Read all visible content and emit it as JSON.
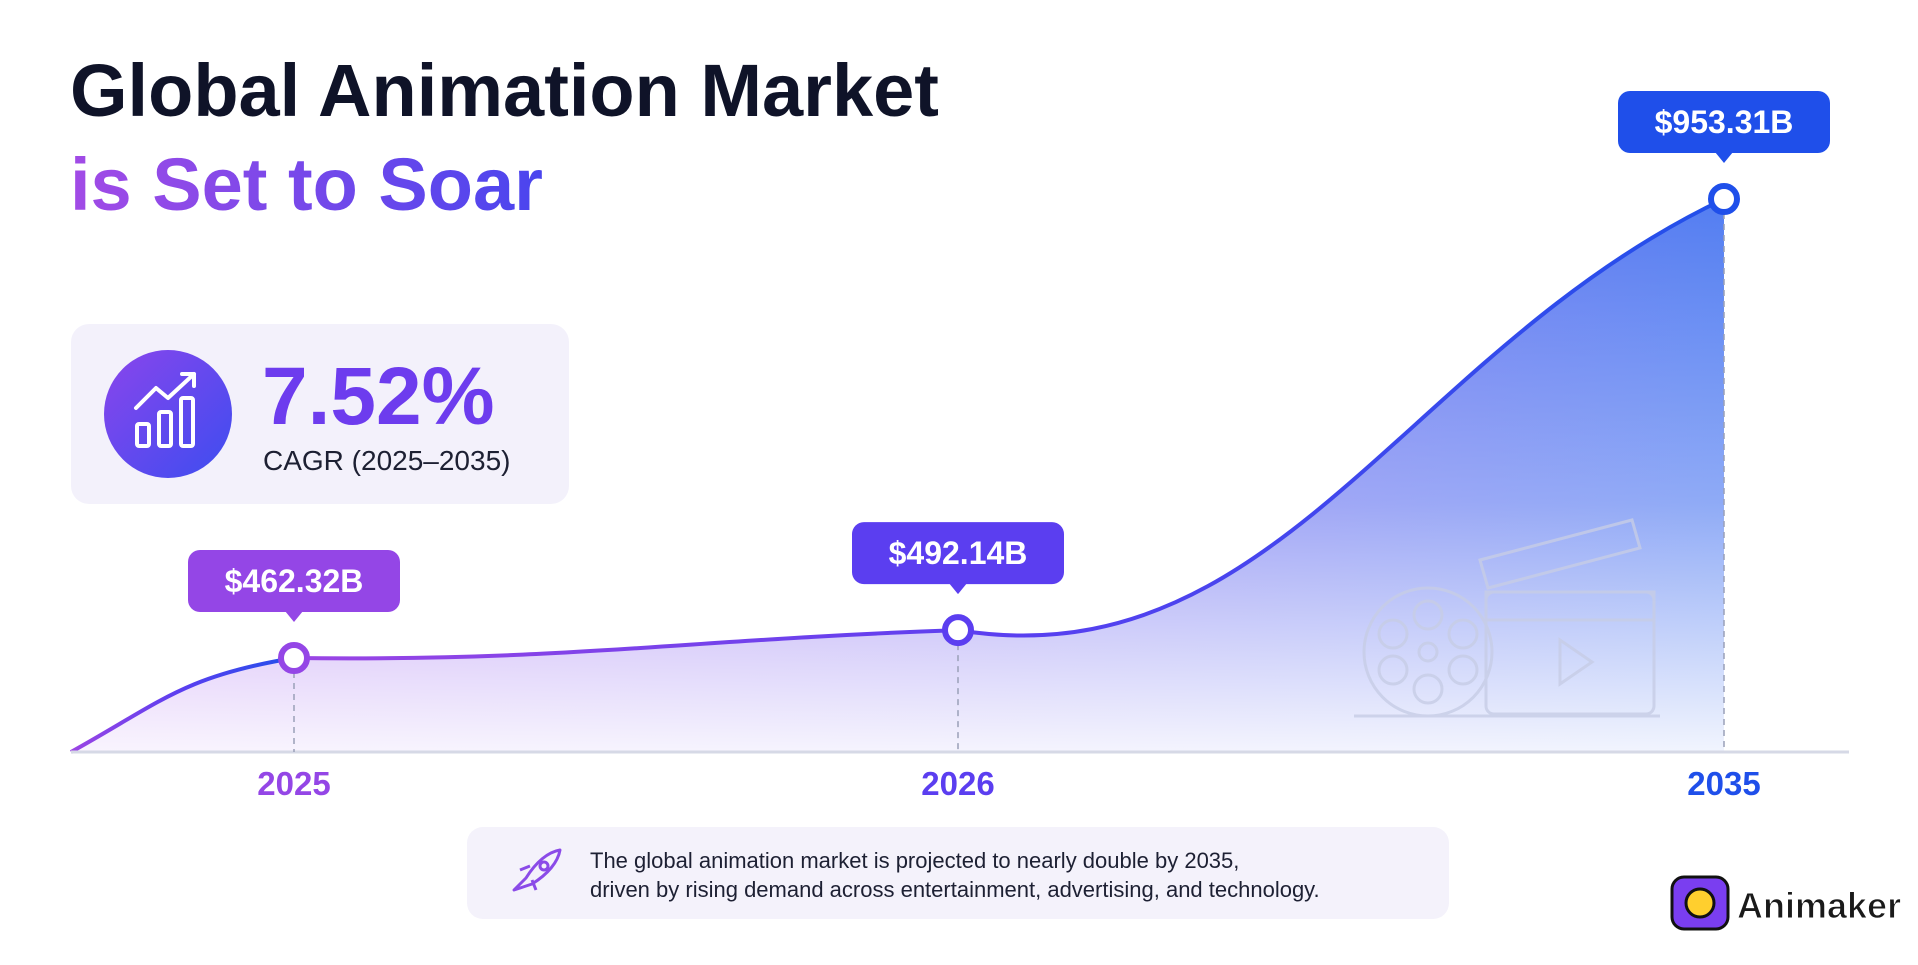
{
  "chart_data": {
    "type": "area",
    "title": "Global Animation Market",
    "subtitle": "is Set to Soar",
    "categories": [
      "2025",
      "2026",
      "2035"
    ],
    "values": [
      462.32,
      492.14,
      953.31
    ],
    "value_labels": [
      "$462.32B",
      "$492.14B",
      "$953.31B"
    ],
    "colors": [
      "#9446e6",
      "#5b3ef0",
      "#1f4fea"
    ],
    "stat": "7.52%",
    "stat_caption": "CAGR (2025–2035)",
    "note": [
      "The global animation market is projected to nearly double by 2035,",
      "driven by rising demand across entertainment, advertising, and technology."
    ],
    "brand": "Animaker"
  }
}
